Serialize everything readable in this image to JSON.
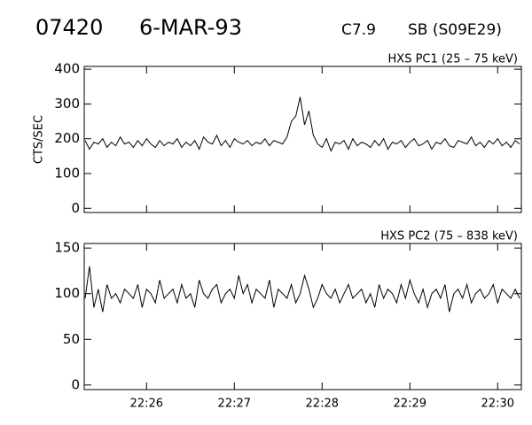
{
  "header": {
    "id": "07420",
    "date": "6-MAR-93",
    "class": "C7.9",
    "location": "SB (S09E29)"
  },
  "chart_data": [
    {
      "type": "line",
      "title": "HXS PC1 (25 – 75 keV)",
      "y_label": "CTS/SEC",
      "color": "#000000",
      "xlim": [
        25.29,
        30.27
      ],
      "ylim": [
        -12,
        408
      ],
      "yticks": [
        0,
        100,
        200,
        300,
        400
      ],
      "xticks": [
        {
          "value": 26,
          "label": "22:26"
        },
        {
          "value": 27,
          "label": "22:27"
        },
        {
          "value": 28,
          "label": "22:28"
        },
        {
          "value": 29,
          "label": "22:29"
        },
        {
          "value": 30,
          "label": "22:30"
        }
      ],
      "x": [
        25.3,
        25.35,
        25.4,
        25.45,
        25.5,
        25.55,
        25.6,
        25.65,
        25.7,
        25.75,
        25.8,
        25.85,
        25.9,
        25.95,
        26,
        26.05,
        26.1,
        26.15,
        26.2,
        26.25,
        26.3,
        26.35,
        26.4,
        26.45,
        26.5,
        26.55,
        26.6,
        26.65,
        26.7,
        26.75,
        26.8,
        26.85,
        26.9,
        26.95,
        27,
        27.05,
        27.1,
        27.15,
        27.2,
        27.25,
        27.3,
        27.35,
        27.4,
        27.45,
        27.5,
        27.55,
        27.6,
        27.65,
        27.7,
        27.75,
        27.8,
        27.85,
        27.9,
        27.95,
        28,
        28.05,
        28.1,
        28.15,
        28.2,
        28.25,
        28.3,
        28.35,
        28.4,
        28.45,
        28.5,
        28.55,
        28.6,
        28.65,
        28.7,
        28.75,
        28.8,
        28.85,
        28.9,
        28.95,
        29,
        29.05,
        29.1,
        29.15,
        29.2,
        29.25,
        29.3,
        29.35,
        29.4,
        29.45,
        29.5,
        29.55,
        29.6,
        29.65,
        29.7,
        29.75,
        29.8,
        29.85,
        29.9,
        29.95,
        30,
        30.05,
        30.1,
        30.15,
        30.2,
        30.25
      ],
      "values": [
        195,
        170,
        190,
        185,
        200,
        175,
        190,
        180,
        205,
        185,
        190,
        175,
        195,
        180,
        200,
        185,
        175,
        195,
        180,
        190,
        185,
        200,
        175,
        190,
        180,
        195,
        170,
        205,
        190,
        185,
        210,
        180,
        195,
        175,
        200,
        190,
        185,
        195,
        180,
        190,
        185,
        200,
        180,
        195,
        190,
        185,
        205,
        250,
        265,
        320,
        240,
        280,
        210,
        185,
        175,
        200,
        165,
        190,
        185,
        195,
        170,
        200,
        180,
        190,
        185,
        175,
        195,
        180,
        200,
        170,
        190,
        185,
        195,
        175,
        190,
        200,
        180,
        185,
        195,
        170,
        190,
        185,
        200,
        180,
        175,
        195,
        190,
        185,
        205,
        180,
        190,
        175,
        195,
        185,
        200,
        180,
        190,
        175,
        195,
        185
      ]
    },
    {
      "type": "line",
      "title": "HXS PC2 (75 – 838 keV)",
      "color": "#000000",
      "xlim": [
        25.29,
        30.27
      ],
      "ylim": [
        -5,
        155
      ],
      "yticks": [
        0,
        50,
        100,
        150
      ],
      "xticks": [
        {
          "value": 26,
          "label": "22:26"
        },
        {
          "value": 27,
          "label": "22:27"
        },
        {
          "value": 28,
          "label": "22:28"
        },
        {
          "value": 29,
          "label": "22:29"
        },
        {
          "value": 30,
          "label": "22:30"
        }
      ],
      "x": [
        25.3,
        25.35,
        25.4,
        25.45,
        25.5,
        25.55,
        25.6,
        25.65,
        25.7,
        25.75,
        25.8,
        25.85,
        25.9,
        25.95,
        26,
        26.05,
        26.1,
        26.15,
        26.2,
        26.25,
        26.3,
        26.35,
        26.4,
        26.45,
        26.5,
        26.55,
        26.6,
        26.65,
        26.7,
        26.75,
        26.8,
        26.85,
        26.9,
        26.95,
        27,
        27.05,
        27.1,
        27.15,
        27.2,
        27.25,
        27.3,
        27.35,
        27.4,
        27.45,
        27.5,
        27.55,
        27.6,
        27.65,
        27.7,
        27.75,
        27.8,
        27.85,
        27.9,
        27.95,
        28,
        28.05,
        28.1,
        28.15,
        28.2,
        28.25,
        28.3,
        28.35,
        28.4,
        28.45,
        28.5,
        28.55,
        28.6,
        28.65,
        28.7,
        28.75,
        28.8,
        28.85,
        28.9,
        28.95,
        29,
        29.05,
        29.1,
        29.15,
        29.2,
        29.25,
        29.3,
        29.35,
        29.4,
        29.45,
        29.5,
        29.55,
        29.6,
        29.65,
        29.7,
        29.75,
        29.8,
        29.85,
        29.9,
        29.95,
        30,
        30.05,
        30.1,
        30.15,
        30.2,
        30.25
      ],
      "values": [
        95,
        130,
        85,
        105,
        80,
        110,
        95,
        100,
        90,
        105,
        100,
        95,
        110,
        85,
        105,
        100,
        90,
        115,
        95,
        100,
        105,
        90,
        110,
        95,
        100,
        85,
        115,
        100,
        95,
        105,
        110,
        90,
        100,
        105,
        95,
        120,
        100,
        110,
        90,
        105,
        100,
        95,
        115,
        85,
        105,
        100,
        95,
        110,
        90,
        100,
        120,
        105,
        85,
        95,
        110,
        100,
        95,
        105,
        90,
        100,
        110,
        95,
        100,
        105,
        90,
        100,
        85,
        110,
        95,
        105,
        100,
        90,
        110,
        95,
        115,
        100,
        90,
        105,
        85,
        100,
        105,
        95,
        110,
        80,
        100,
        105,
        95,
        110,
        90,
        100,
        105,
        95,
        100,
        110,
        90,
        105,
        100,
        95,
        105,
        95
      ]
    }
  ]
}
